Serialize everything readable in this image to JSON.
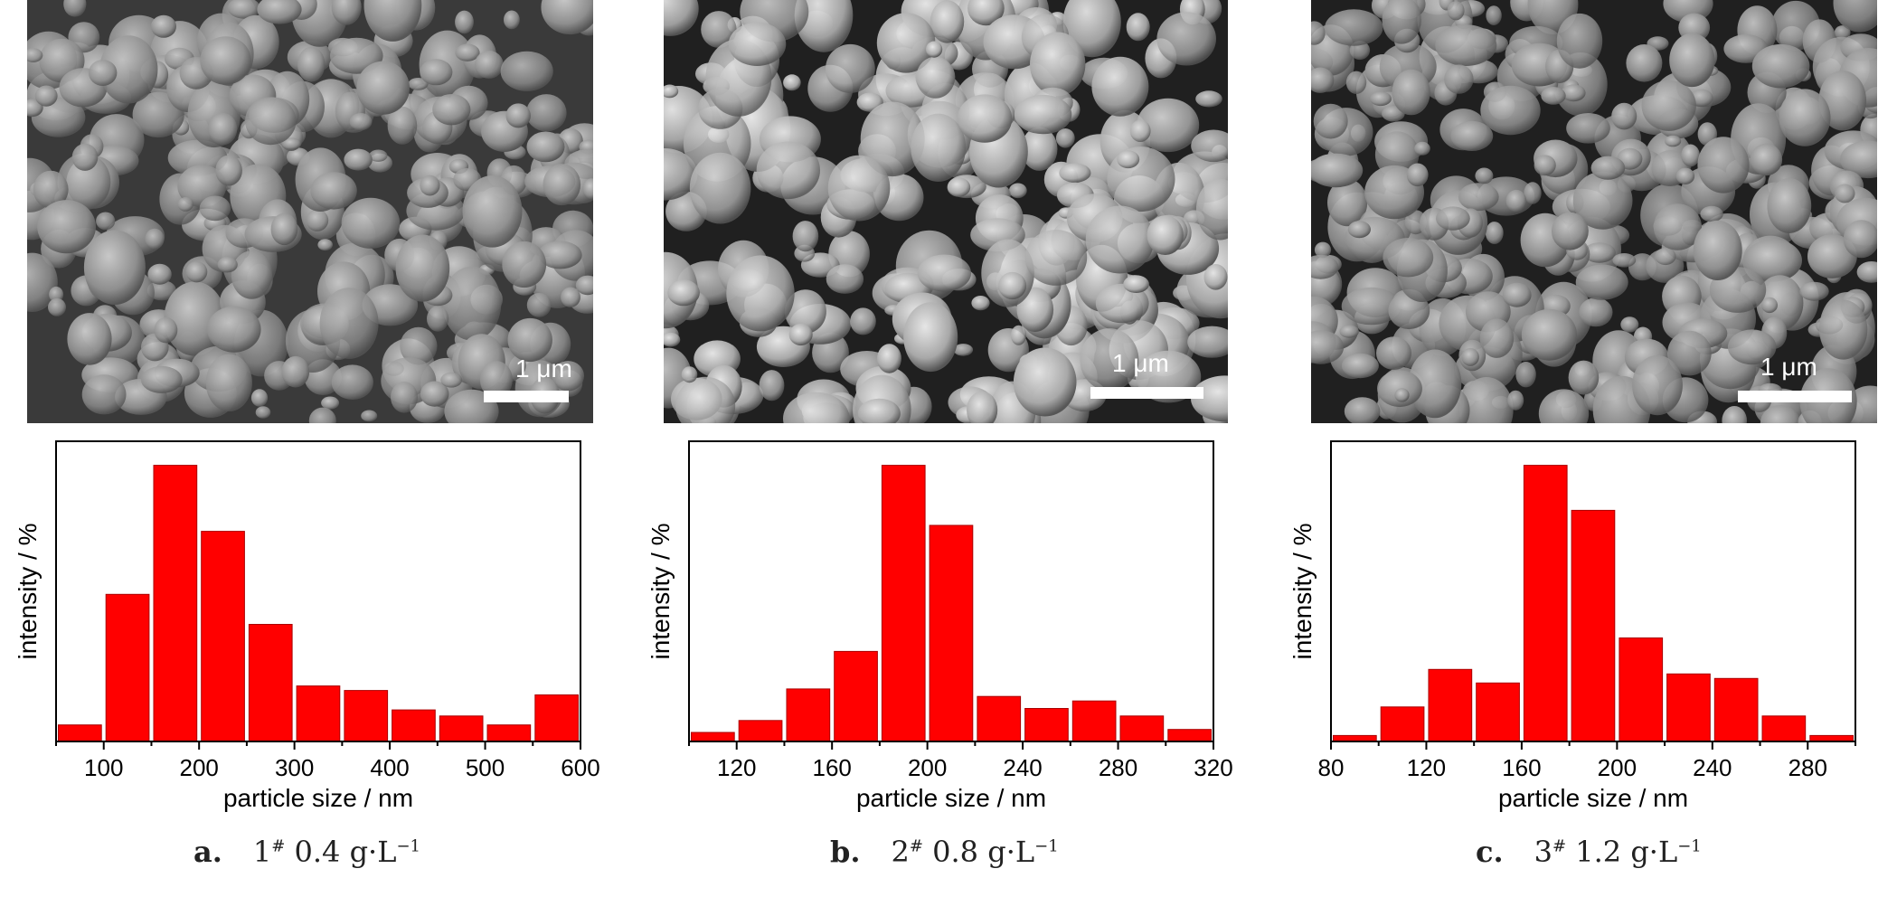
{
  "panels": [
    {
      "scale_label": "1 μm",
      "caption": {
        "letter": "a.",
        "sample": "1",
        "mark": "#",
        "conc": "0.4",
        "unit": "g·L",
        "exp": "−1"
      },
      "chart_data": {
        "type": "bar",
        "xlabel": "particle size / nm",
        "ylabel": "intensity / %",
        "xlim": [
          50,
          600
        ],
        "ylim": [
          0,
          100
        ],
        "xticks": [
          100,
          200,
          300,
          400,
          500,
          600
        ],
        "bin_width": 50,
        "x": [
          75,
          125,
          175,
          225,
          275,
          325,
          375,
          425,
          475,
          525,
          575
        ],
        "values": [
          5.5,
          49,
          92,
          70,
          39,
          18.5,
          17,
          10.5,
          8.5,
          5.5,
          15.5
        ]
      }
    },
    {
      "scale_label": "1 μm",
      "caption": {
        "letter": "b.",
        "sample": "2",
        "mark": "#",
        "conc": "0.8",
        "unit": "g·L",
        "exp": "−1"
      },
      "chart_data": {
        "type": "bar",
        "xlabel": "particle size / nm",
        "ylabel": "intensity / %",
        "xlim": [
          100,
          320
        ],
        "ylim": [
          0,
          100
        ],
        "xticks": [
          120,
          160,
          200,
          240,
          280,
          320
        ],
        "bin_width": 20,
        "x": [
          110,
          130,
          150,
          170,
          190,
          210,
          230,
          250,
          270,
          290,
          310
        ],
        "values": [
          3,
          7,
          17.5,
          30,
          92,
          72,
          15,
          11,
          13.5,
          8.5,
          4
        ]
      }
    },
    {
      "scale_label": "1 μm",
      "caption": {
        "letter": "c.",
        "sample": "3",
        "mark": "#",
        "conc": "1.2",
        "unit": "g·L",
        "exp": "−1"
      },
      "chart_data": {
        "type": "bar",
        "xlabel": "particle size / nm",
        "ylabel": "intensity / %",
        "xlim": [
          80,
          300
        ],
        "ylim": [
          0,
          100
        ],
        "xticks": [
          80,
          120,
          160,
          200,
          240,
          280
        ],
        "bin_width": 20,
        "x": [
          90,
          110,
          130,
          150,
          170,
          190,
          210,
          230,
          250,
          270,
          290
        ],
        "values": [
          2,
          11.5,
          24,
          19.5,
          92,
          77,
          34.5,
          22.5,
          21,
          8.5,
          2
        ]
      }
    }
  ],
  "colors": {
    "bar": "#ff0000",
    "bar_edge": "#aa0000",
    "axis": "#000000"
  }
}
